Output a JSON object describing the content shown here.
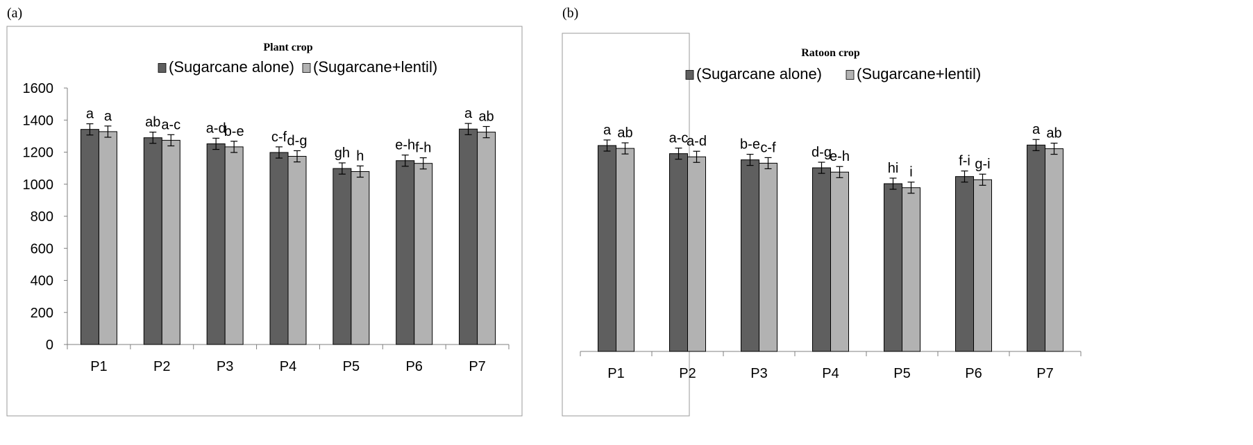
{
  "colors": {
    "series1": "#5f5f5f",
    "series2": "#b2b2b2",
    "frame": "#9a9a9a",
    "axis": "#7f7f7f"
  },
  "chart_data": [
    {
      "panel_label": "(a)",
      "type": "bar",
      "title": "Plant crop",
      "categories": [
        "P1",
        "P2",
        "P3",
        "P4",
        "P5",
        "P6",
        "P7"
      ],
      "ylim": [
        0,
        1600
      ],
      "yticks": [
        0,
        200,
        400,
        600,
        800,
        1000,
        1200,
        1400,
        1600
      ],
      "grid": false,
      "legend_position": "top-center",
      "series": [
        {
          "name": "(Sugarcane alone)",
          "values": [
            1342,
            1290,
            1252,
            1198,
            1098,
            1147,
            1344
          ],
          "error": [
            35,
            35,
            35,
            35,
            35,
            35,
            35
          ],
          "labels": [
            "a",
            "ab",
            "a-d",
            "c-f",
            "gh",
            "e-h",
            "a"
          ]
        },
        {
          "name": "(Sugarcane+lentil)",
          "values": [
            1328,
            1274,
            1233,
            1174,
            1079,
            1130,
            1325
          ],
          "error": [
            35,
            35,
            35,
            35,
            35,
            35,
            35
          ],
          "labels": [
            "a",
            "a-c",
            "b-e",
            "d-g",
            "h",
            "f-h",
            "ab"
          ]
        }
      ]
    },
    {
      "panel_label": "(b)",
      "type": "bar",
      "title": "Ratoon crop",
      "categories": [
        "P1",
        "P2",
        "P3",
        "P4",
        "P5",
        "P6",
        "P7"
      ],
      "ylim": [
        0,
        1600
      ],
      "yticks": [],
      "grid": false,
      "legend_position": "top-center",
      "series": [
        {
          "name": "(Sugarcane alone)",
          "values": [
            1295,
            1244,
            1205,
            1155,
            1055,
            1100,
            1298
          ],
          "error": [
            35,
            35,
            35,
            35,
            35,
            35,
            35
          ],
          "labels": [
            "a",
            "a-c",
            "b-e",
            "d-g",
            "hi",
            "f-i",
            "a"
          ]
        },
        {
          "name": "(Sugarcane+lentil)",
          "values": [
            1277,
            1224,
            1184,
            1128,
            1030,
            1080,
            1275
          ],
          "error": [
            35,
            35,
            35,
            35,
            35,
            35,
            35
          ],
          "labels": [
            "ab",
            "a-d",
            "c-f",
            "e-h",
            "i",
            "g-i",
            "ab"
          ]
        }
      ]
    }
  ]
}
